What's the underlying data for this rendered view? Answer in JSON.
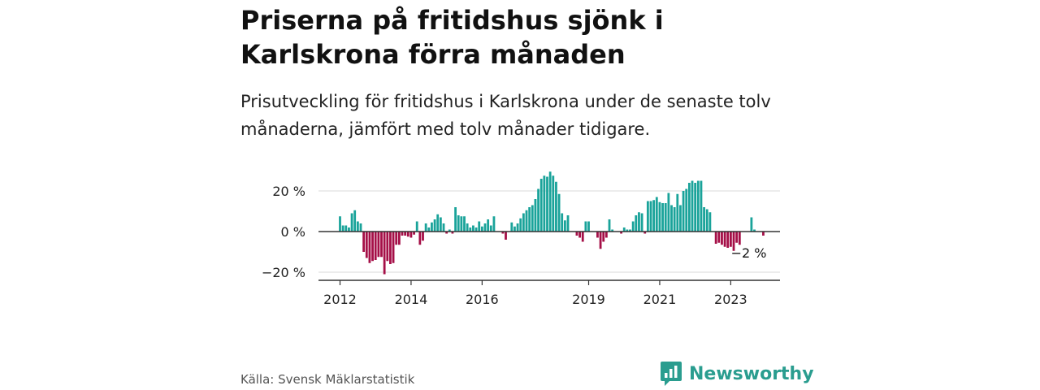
{
  "header": {
    "title": "Priserna på fritidshus sjönk i Karlskrona förra månaden",
    "subtitle": "Prisutveckling för fritidshus i Karlskrona under de senaste tolv månaderna, jämfört med tolv månader tidigare."
  },
  "footer": {
    "source": "Källa: Svensk Mäklarstatistik",
    "brand": "Newsworthy"
  },
  "colors": {
    "positive": "#1aa39a",
    "negative": "#a50f47",
    "brand": "#2a9d8f",
    "grid": "#d9d9d9",
    "axis": "#333333"
  },
  "chart_data": {
    "type": "bar",
    "y_unit": "%",
    "ylim": [
      -24,
      32
    ],
    "y_ticks": [
      {
        "value": 20,
        "label": "20 %"
      },
      {
        "value": 0,
        "label": "0 %"
      },
      {
        "value": -20,
        "label": "−20 %"
      }
    ],
    "x_ticks": [
      {
        "value": "2012-01",
        "label": "2012"
      },
      {
        "value": "2014-01",
        "label": "2014"
      },
      {
        "value": "2016-01",
        "label": "2016"
      },
      {
        "value": "2019-01",
        "label": "2019"
      },
      {
        "value": "2021-01",
        "label": "2021"
      },
      {
        "value": "2023-01",
        "label": "2023"
      }
    ],
    "grid": true,
    "annotation": {
      "label": "−2 %",
      "period": "2023-12",
      "value": -2
    },
    "series": [
      {
        "period": "2012-01",
        "value": 7.5
      },
      {
        "period": "2012-02",
        "value": 3
      },
      {
        "period": "2012-03",
        "value": 3
      },
      {
        "period": "2012-04",
        "value": 2
      },
      {
        "period": "2012-05",
        "value": 9
      },
      {
        "period": "2012-06",
        "value": 10.5
      },
      {
        "period": "2012-07",
        "value": 5
      },
      {
        "period": "2012-08",
        "value": 4
      },
      {
        "period": "2012-09",
        "value": -10
      },
      {
        "period": "2012-10",
        "value": -13
      },
      {
        "period": "2012-11",
        "value": -15.5
      },
      {
        "period": "2012-12",
        "value": -14.5
      },
      {
        "period": "2013-01",
        "value": -14
      },
      {
        "period": "2013-02",
        "value": -12.5
      },
      {
        "period": "2013-03",
        "value": -12.5
      },
      {
        "period": "2013-04",
        "value": -21
      },
      {
        "period": "2013-05",
        "value": -14.5
      },
      {
        "period": "2013-06",
        "value": -16
      },
      {
        "period": "2013-07",
        "value": -15.5
      },
      {
        "period": "2013-08",
        "value": -6.5
      },
      {
        "period": "2013-09",
        "value": -6.5
      },
      {
        "period": "2013-10",
        "value": -2
      },
      {
        "period": "2013-11",
        "value": -2
      },
      {
        "period": "2013-12",
        "value": -2.5
      },
      {
        "period": "2014-01",
        "value": -3
      },
      {
        "period": "2014-02",
        "value": -1.5
      },
      {
        "period": "2014-03",
        "value": 5
      },
      {
        "period": "2014-04",
        "value": -6.5
      },
      {
        "period": "2014-05",
        "value": -4.5
      },
      {
        "period": "2014-06",
        "value": 4
      },
      {
        "period": "2014-07",
        "value": 2
      },
      {
        "period": "2014-08",
        "value": 4.5
      },
      {
        "period": "2014-09",
        "value": 6
      },
      {
        "period": "2014-10",
        "value": 8.5
      },
      {
        "period": "2014-11",
        "value": 7
      },
      {
        "period": "2014-12",
        "value": 4
      },
      {
        "period": "2015-01",
        "value": -1
      },
      {
        "period": "2015-02",
        "value": 1
      },
      {
        "period": "2015-03",
        "value": -1
      },
      {
        "period": "2015-04",
        "value": 12
      },
      {
        "period": "2015-05",
        "value": 8
      },
      {
        "period": "2015-06",
        "value": 7.5
      },
      {
        "period": "2015-07",
        "value": 7.5
      },
      {
        "period": "2015-08",
        "value": 4
      },
      {
        "period": "2015-09",
        "value": 2
      },
      {
        "period": "2015-10",
        "value": 3
      },
      {
        "period": "2015-11",
        "value": 2
      },
      {
        "period": "2015-12",
        "value": 5
      },
      {
        "period": "2016-01",
        "value": 2.5
      },
      {
        "period": "2016-02",
        "value": 4
      },
      {
        "period": "2016-03",
        "value": 6
      },
      {
        "period": "2016-04",
        "value": 3
      },
      {
        "period": "2016-05",
        "value": 7.5
      },
      {
        "period": "2016-06",
        "value": 0
      },
      {
        "period": "2016-07",
        "value": 0
      },
      {
        "period": "2016-08",
        "value": -1
      },
      {
        "period": "2016-09",
        "value": -4
      },
      {
        "period": "2016-10",
        "value": 0
      },
      {
        "period": "2016-11",
        "value": 4.5
      },
      {
        "period": "2016-12",
        "value": 2.5
      },
      {
        "period": "2017-01",
        "value": 4
      },
      {
        "period": "2017-02",
        "value": 6.5
      },
      {
        "period": "2017-03",
        "value": 9
      },
      {
        "period": "2017-04",
        "value": 10.5
      },
      {
        "period": "2017-05",
        "value": 12
      },
      {
        "period": "2017-06",
        "value": 13
      },
      {
        "period": "2017-07",
        "value": 16
      },
      {
        "period": "2017-08",
        "value": 21
      },
      {
        "period": "2017-09",
        "value": 26
      },
      {
        "period": "2017-10",
        "value": 27.5
      },
      {
        "period": "2017-11",
        "value": 27
      },
      {
        "period": "2017-12",
        "value": 29.5
      },
      {
        "period": "2018-01",
        "value": 27.5
      },
      {
        "period": "2018-02",
        "value": 24.5
      },
      {
        "period": "2018-03",
        "value": 18.5
      },
      {
        "period": "2018-04",
        "value": 9
      },
      {
        "period": "2018-05",
        "value": 5.5
      },
      {
        "period": "2018-06",
        "value": 8
      },
      {
        "period": "2018-07",
        "value": 0
      },
      {
        "period": "2018-08",
        "value": 0
      },
      {
        "period": "2018-09",
        "value": -2
      },
      {
        "period": "2018-10",
        "value": -3
      },
      {
        "period": "2018-11",
        "value": -5
      },
      {
        "period": "2018-12",
        "value": 5
      },
      {
        "period": "2019-01",
        "value": 5
      },
      {
        "period": "2019-02",
        "value": 0
      },
      {
        "period": "2019-03",
        "value": 0
      },
      {
        "period": "2019-04",
        "value": -3
      },
      {
        "period": "2019-05",
        "value": -8.5
      },
      {
        "period": "2019-06",
        "value": -5
      },
      {
        "period": "2019-07",
        "value": -3
      },
      {
        "period": "2019-08",
        "value": 6
      },
      {
        "period": "2019-09",
        "value": 1
      },
      {
        "period": "2019-10",
        "value": 0
      },
      {
        "period": "2019-11",
        "value": 0
      },
      {
        "period": "2019-12",
        "value": -1
      },
      {
        "period": "2020-01",
        "value": 2
      },
      {
        "period": "2020-02",
        "value": 1
      },
      {
        "period": "2020-03",
        "value": 1
      },
      {
        "period": "2020-04",
        "value": 5
      },
      {
        "period": "2020-05",
        "value": 8
      },
      {
        "period": "2020-06",
        "value": 9.5
      },
      {
        "period": "2020-07",
        "value": 9
      },
      {
        "period": "2020-08",
        "value": -1
      },
      {
        "period": "2020-09",
        "value": 15
      },
      {
        "period": "2020-10",
        "value": 15
      },
      {
        "period": "2020-11",
        "value": 15.5
      },
      {
        "period": "2020-12",
        "value": 17
      },
      {
        "period": "2021-01",
        "value": 14.5
      },
      {
        "period": "2021-02",
        "value": 14
      },
      {
        "period": "2021-03",
        "value": 14
      },
      {
        "period": "2021-04",
        "value": 19
      },
      {
        "period": "2021-05",
        "value": 13
      },
      {
        "period": "2021-06",
        "value": 12
      },
      {
        "period": "2021-07",
        "value": 18.5
      },
      {
        "period": "2021-08",
        "value": 13
      },
      {
        "period": "2021-09",
        "value": 20
      },
      {
        "period": "2021-10",
        "value": 21
      },
      {
        "period": "2021-11",
        "value": 24
      },
      {
        "period": "2021-12",
        "value": 25
      },
      {
        "period": "2022-01",
        "value": 24
      },
      {
        "period": "2022-02",
        "value": 25
      },
      {
        "period": "2022-03",
        "value": 25
      },
      {
        "period": "2022-04",
        "value": 12
      },
      {
        "period": "2022-05",
        "value": 11
      },
      {
        "period": "2022-06",
        "value": 9.5
      },
      {
        "period": "2022-07",
        "value": 0
      },
      {
        "period": "2022-08",
        "value": -6
      },
      {
        "period": "2022-09",
        "value": -5.5
      },
      {
        "period": "2022-10",
        "value": -6.5
      },
      {
        "period": "2022-11",
        "value": -7.5
      },
      {
        "period": "2022-12",
        "value": -8
      },
      {
        "period": "2023-01",
        "value": -7.5
      },
      {
        "period": "2023-02",
        "value": -9.5
      },
      {
        "period": "2023-03",
        "value": -5.5
      },
      {
        "period": "2023-04",
        "value": -6.5
      },
      {
        "period": "2023-05",
        "value": 0
      },
      {
        "period": "2023-06",
        "value": 0
      },
      {
        "period": "2023-07",
        "value": 0
      },
      {
        "period": "2023-08",
        "value": 7
      },
      {
        "period": "2023-09",
        "value": 1
      },
      {
        "period": "2023-10",
        "value": 0
      },
      {
        "period": "2023-11",
        "value": 0
      },
      {
        "period": "2023-12",
        "value": -2
      }
    ]
  }
}
